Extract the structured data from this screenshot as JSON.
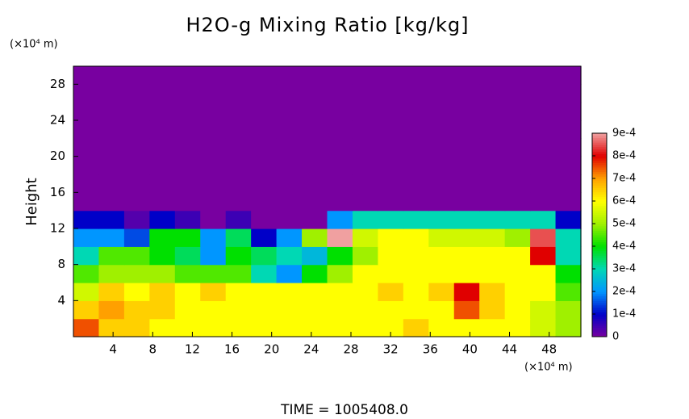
{
  "chart_data": {
    "type": "heatmap",
    "title": "H2O-g Mixing Ratio [kg/kg]",
    "y_label": "Height",
    "y_unit": "(×10⁴ m)",
    "x_unit": "(×10⁴ m)",
    "footer": "TIME = 1005408.0",
    "xlim": [
      0,
      51.2
    ],
    "ylim": [
      0,
      30
    ],
    "xticks": [
      4,
      8,
      12,
      16,
      20,
      24,
      28,
      32,
      36,
      40,
      44,
      48
    ],
    "yticks": [
      4,
      8,
      12,
      16,
      20,
      24,
      28
    ],
    "x": [
      1.28,
      3.84,
      6.4,
      8.96,
      11.52,
      14.08,
      16.64,
      19.2,
      21.76,
      24.32,
      26.88,
      29.44,
      32,
      34.56,
      37.12,
      39.68,
      42.24,
      44.8,
      47.36,
      49.92
    ],
    "y": [
      1,
      3,
      5,
      7,
      9,
      11,
      13,
      15,
      17,
      19,
      21,
      23,
      25,
      27,
      29
    ],
    "z": [
      [
        0.00075,
        0.00065,
        0.00065,
        0.0006,
        0.0006,
        0.0006,
        0.0006,
        0.0006,
        0.0006,
        0.0006,
        0.0006,
        0.0006,
        0.0006,
        0.00065,
        0.0006,
        0.0006,
        0.0006,
        0.0006,
        0.00055,
        0.0005
      ],
      [
        0.00065,
        0.0007,
        0.00065,
        0.00065,
        0.0006,
        0.0006,
        0.0006,
        0.0006,
        0.0006,
        0.0006,
        0.0006,
        0.0006,
        0.0006,
        0.0006,
        0.0006,
        0.00075,
        0.00065,
        0.0006,
        0.00055,
        0.0005
      ],
      [
        0.00055,
        0.00065,
        0.0006,
        0.00065,
        0.0006,
        0.00065,
        0.0006,
        0.0006,
        0.0006,
        0.0006,
        0.0006,
        0.0006,
        0.00065,
        0.0006,
        0.00065,
        0.0008,
        0.00065,
        0.0006,
        0.0006,
        0.00045
      ],
      [
        0.00045,
        0.0005,
        0.0005,
        0.0005,
        0.00045,
        0.00045,
        0.00045,
        0.0003,
        0.0002,
        0.0004,
        0.0005,
        0.0006,
        0.0006,
        0.0006,
        0.0006,
        0.0006,
        0.0006,
        0.0006,
        0.0006,
        0.0004
      ],
      [
        0.0003,
        0.00045,
        0.00045,
        0.0004,
        0.00035,
        0.0002,
        0.0004,
        0.00035,
        0.0003,
        0.00025,
        0.0004,
        0.0005,
        0.0006,
        0.0006,
        0.0006,
        0.0006,
        0.0006,
        0.0006,
        0.0008,
        0.0003
      ],
      [
        0.0002,
        0.0002,
        0.00015,
        0.0004,
        0.0004,
        0.0002,
        0.00035,
        0.0001,
        0.0002,
        0.0005,
        0.0009,
        0.00055,
        0.0006,
        0.0006,
        0.00055,
        0.00055,
        0.00055,
        0.0005,
        0.00085,
        0.0003
      ],
      [
        0.0001,
        0.0001,
        3e-05,
        0.0001,
        5e-05,
        0,
        5e-05,
        0,
        0,
        0,
        0.0002,
        0.0003,
        0.0003,
        0.0003,
        0.0003,
        0.0003,
        0.0003,
        0.0003,
        0.0003,
        0.0001
      ],
      [
        0,
        0,
        0,
        0,
        0,
        0,
        0,
        0,
        0,
        0,
        0,
        0,
        0,
        0,
        0,
        0,
        0,
        0,
        0,
        0
      ],
      [
        0,
        0,
        0,
        0,
        0,
        0,
        0,
        0,
        0,
        0,
        0,
        0,
        0,
        0,
        0,
        0,
        0,
        0,
        0,
        0
      ],
      [
        0,
        0,
        0,
        0,
        0,
        0,
        0,
        0,
        0,
        0,
        0,
        0,
        0,
        0,
        0,
        0,
        0,
        0,
        0,
        0
      ],
      [
        0,
        0,
        0,
        0,
        0,
        0,
        0,
        0,
        0,
        0,
        0,
        0,
        0,
        0,
        0,
        0,
        0,
        0,
        0,
        0
      ],
      [
        0,
        0,
        0,
        0,
        0,
        0,
        0,
        0,
        0,
        0,
        0,
        0,
        0,
        0,
        0,
        0,
        0,
        0,
        0,
        0
      ],
      [
        0,
        0,
        0,
        0,
        0,
        0,
        0,
        0,
        0,
        0,
        0,
        0,
        0,
        0,
        0,
        0,
        0,
        0,
        0,
        0
      ],
      [
        0,
        0,
        0,
        0,
        0,
        0,
        0,
        0,
        0,
        0,
        0,
        0,
        0,
        0,
        0,
        0,
        0,
        0,
        0,
        0
      ],
      [
        0,
        0,
        0,
        0,
        0,
        0,
        0,
        0,
        0,
        0,
        0,
        0,
        0,
        0,
        0,
        0,
        0,
        0,
        0,
        0
      ]
    ],
    "clim": [
      0,
      0.0009
    ],
    "colormap": [
      "#7800a0",
      "#0000c8",
      "#0096ff",
      "#00d8b4",
      "#00e000",
      "#a0f000",
      "#ffff00",
      "#ffa000",
      "#e00000",
      "#f0a0a0"
    ],
    "cticks": [
      {
        "value": 0,
        "label": "0"
      },
      {
        "value": 0.0001,
        "label": "1e-4"
      },
      {
        "value": 0.0002,
        "label": "2e-4"
      },
      {
        "value": 0.0003,
        "label": "3e-4"
      },
      {
        "value": 0.0004,
        "label": "4e-4"
      },
      {
        "value": 0.0005,
        "label": "5e-4"
      },
      {
        "value": 0.0006,
        "label": "6e-4"
      },
      {
        "value": 0.0007,
        "label": "7e-4"
      },
      {
        "value": 0.0008,
        "label": "8e-4"
      },
      {
        "value": 0.0009,
        "label": "9e-4"
      }
    ]
  }
}
